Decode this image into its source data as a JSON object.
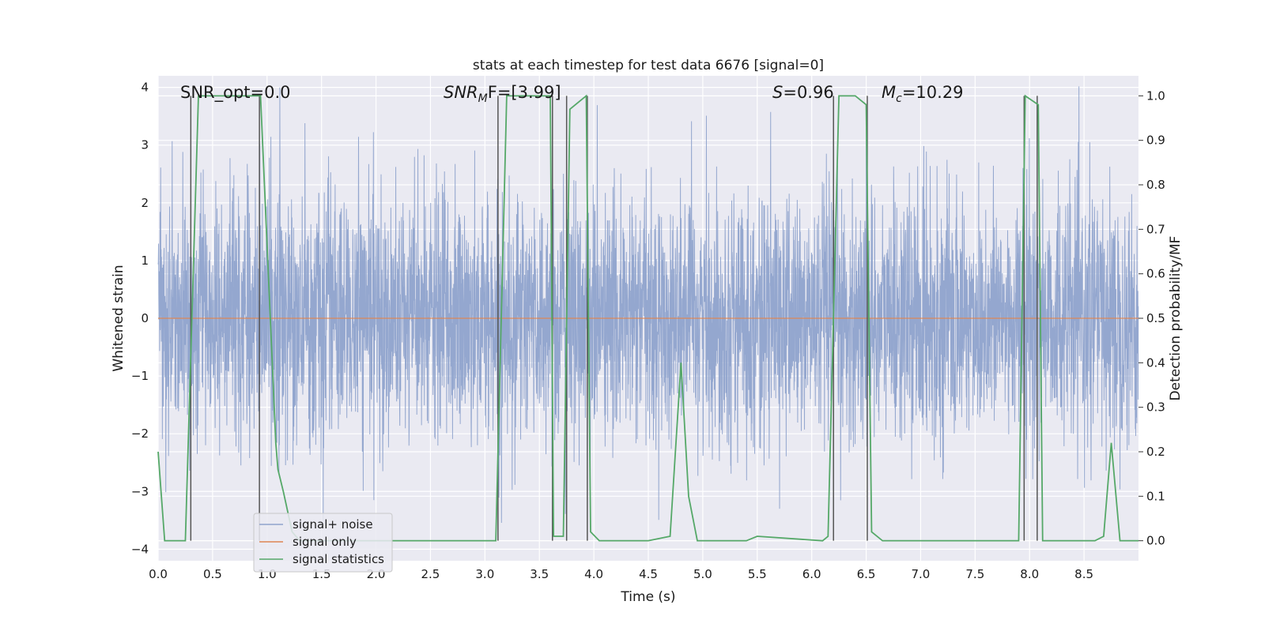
{
  "chart_data": {
    "type": "line",
    "title": "stats at each timestep for test data 6676 [signal=0]",
    "xlabel": "Time (s)",
    "ylabel": "Whitened strain",
    "y2label": "Detection probability/MF",
    "xlim": [
      0,
      9
    ],
    "ylim": [
      -4.2,
      4.2
    ],
    "y2lim": [
      -0.045,
      1.045
    ],
    "xticks": [
      "0.0",
      "0.5",
      "1.0",
      "1.5",
      "2.0",
      "2.5",
      "3.0",
      "3.5",
      "4.0",
      "4.5",
      "5.0",
      "5.5",
      "6.0",
      "6.5",
      "7.0",
      "7.5",
      "8.0",
      "8.5"
    ],
    "xtick_values": [
      0,
      0.5,
      1,
      1.5,
      2,
      2.5,
      3,
      3.5,
      4,
      4.5,
      5,
      5.5,
      6,
      6.5,
      7,
      7.5,
      8,
      8.5
    ],
    "yticks": [
      "−4",
      "−3",
      "−2",
      "−1",
      "0",
      "1",
      "2",
      "3",
      "4"
    ],
    "ytick_values": [
      -4,
      -3,
      -2,
      -1,
      0,
      1,
      2,
      3,
      4
    ],
    "y2ticks": [
      "0.0",
      "0.1",
      "0.2",
      "0.3",
      "0.4",
      "0.5",
      "0.6",
      "0.7",
      "0.8",
      "0.9",
      "1.0"
    ],
    "y2tick_values": [
      0,
      0.1,
      0.2,
      0.3,
      0.4,
      0.5,
      0.6,
      0.7,
      0.8,
      0.9,
      1.0
    ],
    "grid": true,
    "legend_position": "lower-left",
    "annotations": {
      "snr_opt": "SNR_opt=0.0",
      "snr_mf_main": "SNR",
      "snr_mf_sub": "M",
      "snr_mf_rest": "F=[3.99]",
      "s_main": "S",
      "s_rest": "=0.96",
      "mc_main": "M",
      "mc_sub": "c",
      "mc_rest": "=10.29"
    },
    "series": [
      {
        "name": "signal+ noise",
        "axis": "left",
        "color": "#8fa3cc",
        "sample_rate": 512,
        "amplitude_envelope": 4.2,
        "note_values": "noise-like whitened strain, densely sampled between about -3.7 and 3.5"
      },
      {
        "name": "signal only",
        "axis": "left",
        "color": "#dd8452",
        "x": [
          0,
          9
        ],
        "y": [
          0,
          0
        ]
      },
      {
        "name": "signal statistics",
        "axis": "right",
        "color": "#55a868",
        "x": [
          0,
          0.06,
          0.25,
          0.37,
          0.94,
          1.08,
          1.1,
          1.15,
          1.23,
          1.3,
          3.0,
          3.1,
          3.2,
          3.6,
          3.63,
          3.72,
          3.78,
          3.93,
          3.97,
          4.05,
          4.5,
          4.7,
          4.8,
          4.87,
          4.95,
          5.4,
          5.5,
          6.1,
          6.15,
          6.25,
          6.4,
          6.5,
          6.55,
          6.65,
          7.7,
          7.9,
          7.96,
          8.08,
          8.12,
          8.6,
          8.68,
          8.75,
          8.83,
          9.0
        ],
        "y": [
          0.2,
          0,
          0,
          1.0,
          1.0,
          0.22,
          0.16,
          0.11,
          0.02,
          0,
          0,
          0,
          1.0,
          1.0,
          0.01,
          0.01,
          0.97,
          1.0,
          0.02,
          0,
          0,
          0.01,
          0.4,
          0.1,
          0,
          0,
          0.01,
          0,
          0.01,
          1.0,
          1.0,
          0.98,
          0.02,
          0,
          0,
          0,
          1.0,
          0.98,
          0,
          0,
          0.01,
          0.22,
          0,
          0
        ]
      }
    ],
    "vertical_lines": [
      0.3,
      0.93,
      3.12,
      3.62,
      3.75,
      3.94,
      6.2,
      6.51,
      7.95,
      8.07
    ]
  },
  "colors": {
    "plot_background": "#eaeaf2",
    "grid": "#ffffff",
    "noise_fill": "#9aaed2",
    "vertical_line": "#555555",
    "legend_border": "#c8c8c8"
  }
}
